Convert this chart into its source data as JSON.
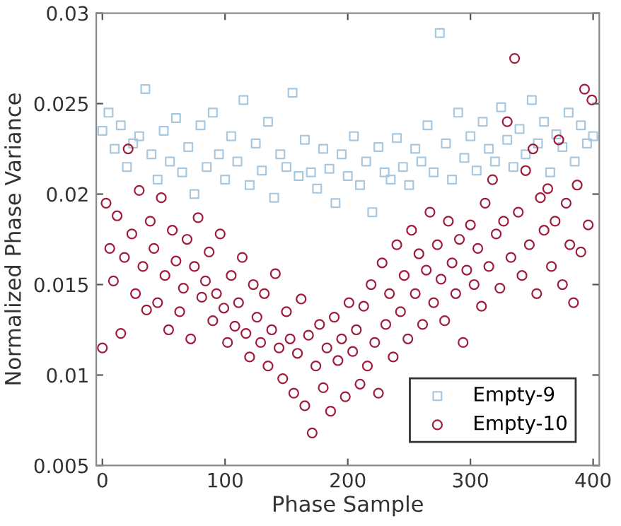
{
  "chart_data": {
    "type": "scatter",
    "xlabel": "Phase Sample",
    "ylabel": "Normalized Phase Variance",
    "xlim": [
      -5,
      405
    ],
    "xticks": [
      0,
      100,
      200,
      300,
      400
    ],
    "ylim": [
      0.005,
      0.03
    ],
    "yticks": [
      0.005,
      0.01,
      0.015,
      0.02,
      0.025,
      0.03
    ],
    "grid": false,
    "legend": "bottom right",
    "series": [
      {
        "name": "Empty-9",
        "color": "#a8c8e0",
        "marker": "square",
        "x": [
          0,
          5,
          10,
          15,
          20,
          25,
          30,
          35,
          40,
          45,
          50,
          55,
          60,
          65,
          70,
          75,
          80,
          85,
          90,
          95,
          100,
          105,
          110,
          115,
          120,
          125,
          130,
          135,
          140,
          145,
          150,
          155,
          160,
          165,
          170,
          175,
          180,
          185,
          190,
          195,
          200,
          205,
          210,
          215,
          220,
          225,
          230,
          235,
          240,
          245,
          250,
          255,
          260,
          265,
          270,
          275,
          280,
          285,
          290,
          295,
          300,
          305,
          310,
          315,
          320,
          325,
          330,
          335,
          340,
          345,
          350,
          355,
          360,
          365,
          370,
          375,
          380,
          385,
          390,
          395,
          400
        ],
        "values": [
          0.0235,
          0.0245,
          0.0225,
          0.0238,
          0.0215,
          0.0228,
          0.0232,
          0.0258,
          0.0222,
          0.0208,
          0.0235,
          0.0218,
          0.0242,
          0.0212,
          0.0226,
          0.02,
          0.0238,
          0.0215,
          0.0245,
          0.0222,
          0.0208,
          0.0232,
          0.0218,
          0.0252,
          0.0205,
          0.0228,
          0.0213,
          0.024,
          0.0198,
          0.0222,
          0.0215,
          0.0256,
          0.021,
          0.023,
          0.0212,
          0.0203,
          0.0225,
          0.0214,
          0.0195,
          0.0222,
          0.021,
          0.0232,
          0.0205,
          0.0218,
          0.019,
          0.0226,
          0.0212,
          0.0208,
          0.0231,
          0.0215,
          0.0205,
          0.0225,
          0.0218,
          0.0238,
          0.0212,
          0.0289,
          0.0228,
          0.0208,
          0.0245,
          0.022,
          0.0232,
          0.0213,
          0.024,
          0.0225,
          0.0218,
          0.0248,
          0.023,
          0.0215,
          0.0236,
          0.0222,
          0.0252,
          0.0228,
          0.024,
          0.0212,
          0.0233,
          0.0226,
          0.0245,
          0.0218,
          0.0238,
          0.0228,
          0.0232
        ]
      },
      {
        "name": "Empty-10",
        "color": "#a01c3c",
        "marker": "circle",
        "x": [
          0,
          3,
          6,
          9,
          12,
          15,
          18,
          21,
          24,
          27,
          30,
          33,
          36,
          39,
          42,
          45,
          48,
          51,
          54,
          57,
          60,
          63,
          66,
          69,
          72,
          75,
          78,
          81,
          84,
          87,
          90,
          93,
          96,
          99,
          102,
          105,
          108,
          111,
          114,
          117,
          120,
          123,
          126,
          129,
          132,
          135,
          138,
          141,
          144,
          147,
          150,
          153,
          156,
          159,
          162,
          165,
          168,
          171,
          174,
          177,
          180,
          183,
          186,
          189,
          192,
          195,
          198,
          201,
          204,
          207,
          210,
          213,
          216,
          219,
          222,
          225,
          228,
          231,
          234,
          237,
          240,
          243,
          246,
          249,
          252,
          255,
          258,
          261,
          264,
          267,
          270,
          273,
          276,
          279,
          282,
          285,
          288,
          291,
          294,
          297,
          300,
          303,
          306,
          309,
          312,
          315,
          318,
          321,
          324,
          327,
          330,
          333,
          336,
          339,
          342,
          345,
          348,
          351,
          354,
          357,
          360,
          363,
          366,
          369,
          372,
          375,
          378,
          381,
          384,
          387,
          390,
          393,
          396,
          399
        ],
        "values": [
          0.0115,
          0.0195,
          0.017,
          0.0152,
          0.0188,
          0.0123,
          0.0165,
          0.0225,
          0.0178,
          0.0145,
          0.0202,
          0.016,
          0.0136,
          0.0185,
          0.017,
          0.014,
          0.0198,
          0.0155,
          0.0125,
          0.018,
          0.0163,
          0.0135,
          0.0148,
          0.0175,
          0.012,
          0.016,
          0.0187,
          0.0143,
          0.0152,
          0.0168,
          0.013,
          0.0145,
          0.0178,
          0.0137,
          0.0118,
          0.0155,
          0.0127,
          0.014,
          0.0165,
          0.0123,
          0.011,
          0.015,
          0.0132,
          0.0118,
          0.0145,
          0.0105,
          0.0125,
          0.0156,
          0.0115,
          0.0098,
          0.0135,
          0.012,
          0.009,
          0.0112,
          0.0142,
          0.0083,
          0.0122,
          0.0068,
          0.0105,
          0.0128,
          0.0093,
          0.0115,
          0.008,
          0.0132,
          0.0108,
          0.012,
          0.0088,
          0.014,
          0.0113,
          0.0125,
          0.0095,
          0.0138,
          0.0105,
          0.015,
          0.0118,
          0.009,
          0.0162,
          0.0128,
          0.0145,
          0.011,
          0.0172,
          0.0135,
          0.0155,
          0.012,
          0.018,
          0.0145,
          0.0167,
          0.0128,
          0.0158,
          0.019,
          0.014,
          0.0172,
          0.0153,
          0.013,
          0.0185,
          0.0162,
          0.0145,
          0.0175,
          0.0118,
          0.0158,
          0.0183,
          0.015,
          0.017,
          0.0138,
          0.0195,
          0.016,
          0.0208,
          0.0178,
          0.0148,
          0.0185,
          0.024,
          0.0165,
          0.0275,
          0.019,
          0.0155,
          0.0213,
          0.0172,
          0.0225,
          0.0145,
          0.0198,
          0.018,
          0.0203,
          0.016,
          0.0185,
          0.023,
          0.015,
          0.0195,
          0.0172,
          0.014,
          0.0205,
          0.0168,
          0.0258,
          0.0183,
          0.0252
        ]
      }
    ]
  }
}
